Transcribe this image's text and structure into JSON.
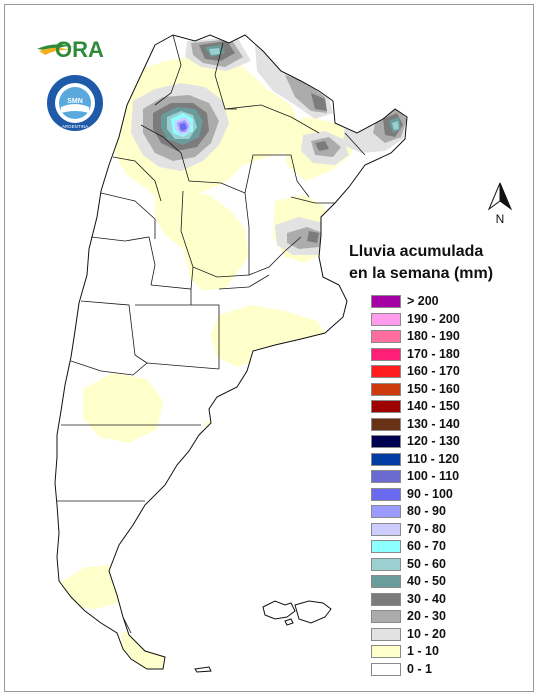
{
  "map": {
    "north_label": "N",
    "logos": {
      "ora_text": "ORA",
      "smn_ring_text": "SERVICIO METEOROLOGICO NACIONAL",
      "smn_bottom_text": "ARGENTINA",
      "smn_center_text": "SMN"
    }
  },
  "legend": {
    "title_line1": "Lluvia acumulada",
    "title_line2": "en la semana (mm)",
    "items": [
      {
        "label": "> 200",
        "color": "#a400a4"
      },
      {
        "label": "190 - 200",
        "color": "#ff9cec"
      },
      {
        "label": "180 - 190",
        "color": "#ff6e9c"
      },
      {
        "label": "170 - 180",
        "color": "#ff1f76"
      },
      {
        "label": "160 - 170",
        "color": "#ff1e1e"
      },
      {
        "label": "150 - 160",
        "color": "#cc3a0d"
      },
      {
        "label": "140 - 150",
        "color": "#9c0000"
      },
      {
        "label": "130 - 140",
        "color": "#6a3214"
      },
      {
        "label": "120 - 130",
        "color": "#000050"
      },
      {
        "label": "110 - 120",
        "color": "#003ca2"
      },
      {
        "label": "100 - 110",
        "color": "#6a6ad0"
      },
      {
        "label": "90 - 100",
        "color": "#6a6af0"
      },
      {
        "label": "80 - 90",
        "color": "#9c9cff"
      },
      {
        "label": "70 - 80",
        "color": "#ccccff"
      },
      {
        "label": "60 - 70",
        "color": "#8cffff"
      },
      {
        "label": "50 - 60",
        "color": "#9cd0d0"
      },
      {
        "label": "40 - 50",
        "color": "#6a9c9c"
      },
      {
        "label": "30 - 40",
        "color": "#7c7c7c"
      },
      {
        "label": "20 - 30",
        "color": "#acacac"
      },
      {
        "label": "10 - 20",
        "color": "#e2e2e2"
      },
      {
        "label": "1 - 10",
        "color": "#ffffcc"
      },
      {
        "label": "0 - 1",
        "color": "#ffffff"
      }
    ]
  }
}
